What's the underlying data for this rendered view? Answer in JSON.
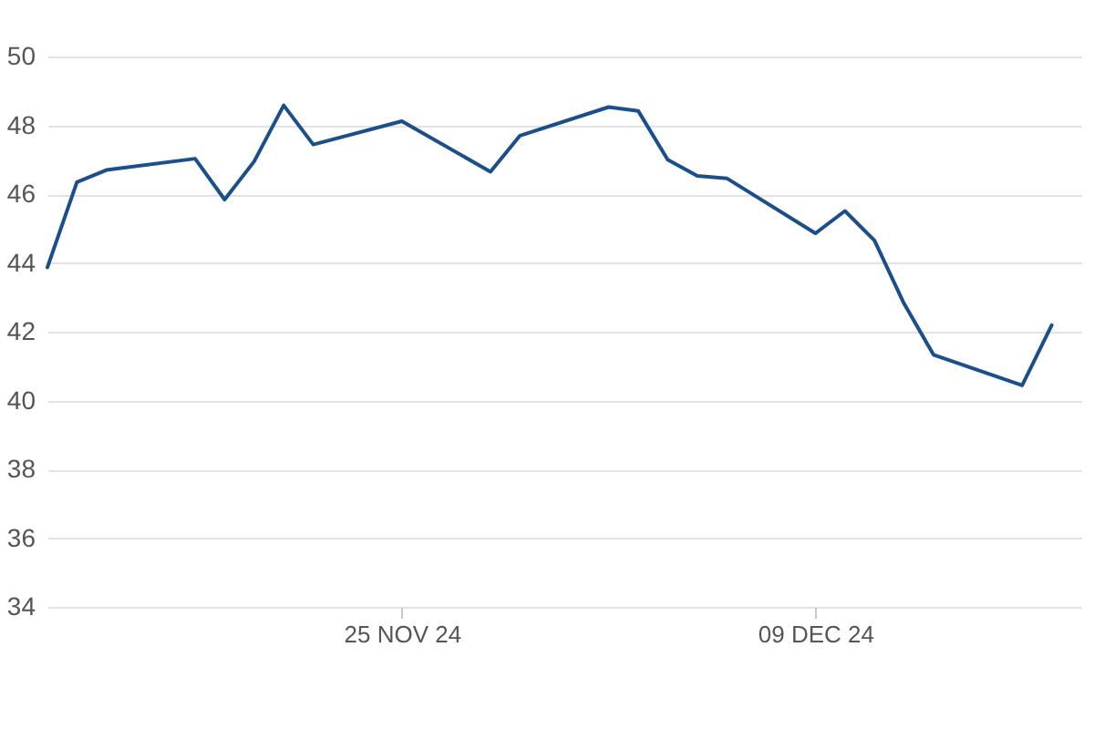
{
  "chart_data": {
    "type": "line",
    "x": [
      "2024-11-13",
      "2024-11-14",
      "2024-11-15",
      "2024-11-18",
      "2024-11-19",
      "2024-11-20",
      "2024-11-21",
      "2024-11-22",
      "2024-11-25",
      "2024-11-28",
      "2024-11-29",
      "2024-12-02",
      "2024-12-03",
      "2024-12-04",
      "2024-12-05",
      "2024-12-06",
      "2024-12-09",
      "2024-12-10",
      "2024-12-11",
      "2024-12-12",
      "2024-12-13",
      "2024-12-16",
      "2024-12-17"
    ],
    "values": [
      43.87,
      46.35,
      46.7,
      47.03,
      45.84,
      46.95,
      48.58,
      47.44,
      48.12,
      46.65,
      47.7,
      48.53,
      48.42,
      47.0,
      46.53,
      46.46,
      44.86,
      45.51,
      44.65,
      42.82,
      41.33,
      40.44,
      42.19
    ],
    "color": "#1b4f8c",
    "line_style": "solid",
    "grid": "y",
    "xlim": [
      "2024-11-13",
      "2024-12-18"
    ],
    "xticks": [
      {
        "value": "2024-11-25",
        "label": "25 NOV 24"
      },
      {
        "value": "2024-12-09",
        "label": "09 DEC 24"
      }
    ],
    "ylim": [
      34,
      50
    ],
    "yticks": [
      34,
      36,
      38,
      40,
      42,
      44,
      46,
      48,
      50
    ]
  }
}
